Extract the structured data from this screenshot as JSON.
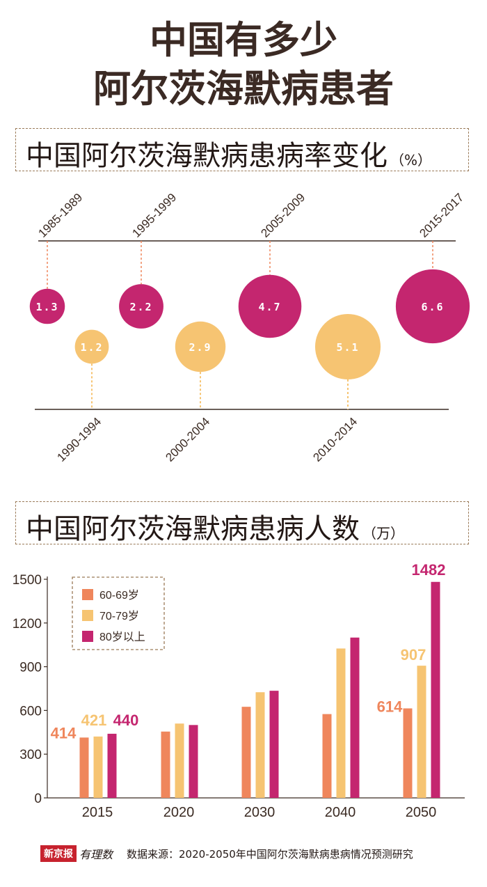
{
  "title_line1": "中国有多少",
  "title_line2": "阿尔茨海默病患者",
  "section1": {
    "title": "中国阿尔茨海默病患病率变化",
    "unit": "（%）"
  },
  "section2": {
    "title": "中国阿尔茨海默病患病人数",
    "unit": "（万）"
  },
  "colors": {
    "magenta": "#c4266f",
    "gold": "#f6c472",
    "orange": "#ef865c",
    "dark_line": "#3a2a22"
  },
  "chart_data": [
    {
      "type": "scatter",
      "categories": [
        "1985-1989",
        "1990-1994",
        "1995-1999",
        "2000-2004",
        "2005-2009",
        "2010-2014",
        "2015-2017"
      ],
      "values": [
        1.3,
        1.2,
        2.2,
        2.9,
        4.7,
        5.1,
        6.6
      ],
      "value_labels": [
        "1.3",
        "1.2",
        "2.2",
        "2.9",
        "4.7",
        "5.1",
        "6.6"
      ],
      "title": "中国阿尔茨海默病患病率变化",
      "ylabel": "%",
      "encoding": "bubble"
    },
    {
      "type": "bar",
      "categories": [
        "2015",
        "2020",
        "2030",
        "2040",
        "2050"
      ],
      "series": [
        {
          "name": "60-69岁",
          "values": [
            414,
            455,
            625,
            575,
            614
          ]
        },
        {
          "name": "70-79岁",
          "values": [
            421,
            510,
            725,
            1025,
            907
          ]
        },
        {
          "name": "80岁以上",
          "values": [
            440,
            500,
            735,
            1100,
            1482
          ]
        }
      ],
      "data_labels": [
        {
          "category": "2015",
          "series": "60-69岁",
          "text": "414"
        },
        {
          "category": "2015",
          "series": "70-79岁",
          "text": "421"
        },
        {
          "category": "2015",
          "series": "80岁以上",
          "text": "440"
        },
        {
          "category": "2050",
          "series": "60-69岁",
          "text": "614"
        },
        {
          "category": "2050",
          "series": "70-79岁",
          "text": "907"
        },
        {
          "category": "2050",
          "series": "80岁以上",
          "text": "1482"
        }
      ],
      "title": "中国阿尔茨海默病患病人数",
      "ylabel": "万",
      "ylim": [
        0,
        1500
      ],
      "yticks": [
        "0",
        "300",
        "600",
        "900",
        "1200",
        "1500"
      ],
      "legend": "top-left"
    }
  ],
  "footer": {
    "logo": "新京报",
    "logo_script": "有理数",
    "source": "数据来源：2020-2050年中国阿尔茨海默病患病情况预测研究"
  }
}
